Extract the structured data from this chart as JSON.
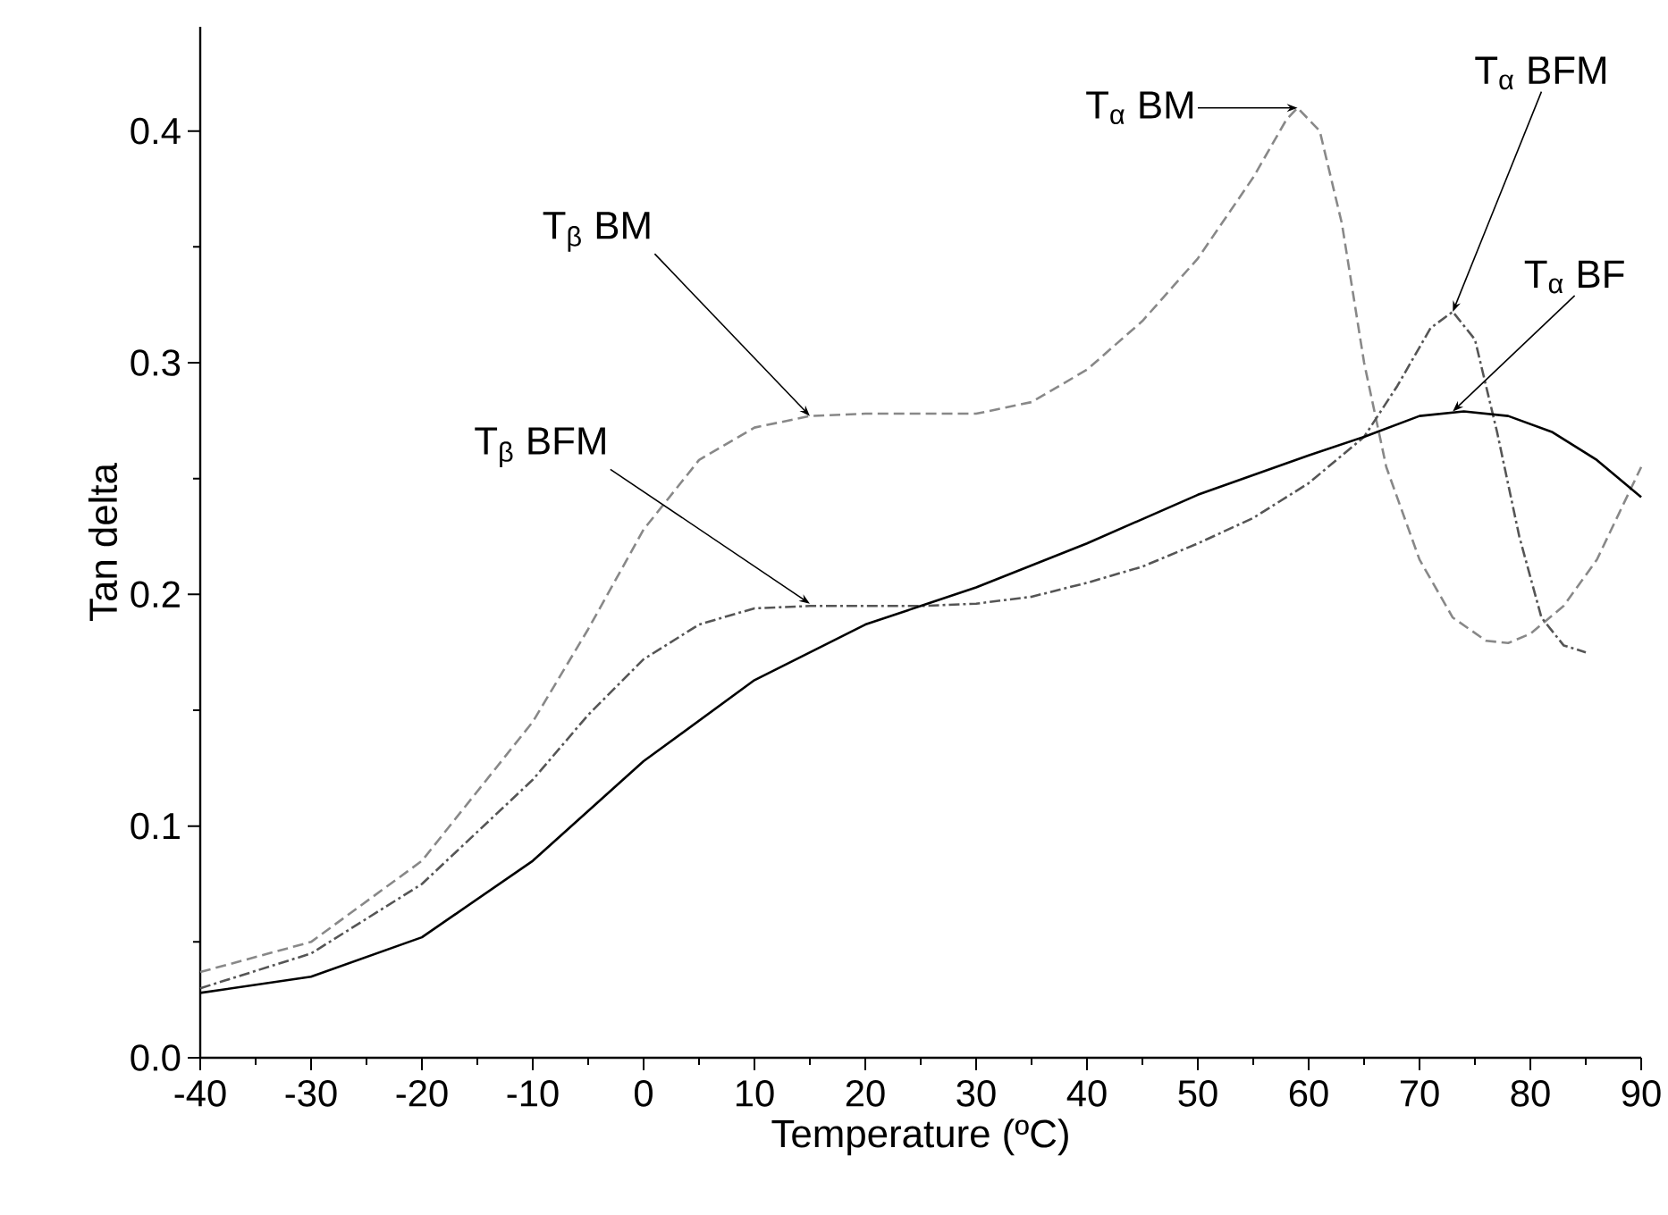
{
  "chart_data": {
    "type": "line",
    "xlabel": "Temperature (ºC)",
    "ylabel": "Tan delta",
    "xlim": [
      -40,
      90
    ],
    "ylim": [
      0,
      0.445
    ],
    "xticks": [
      -40,
      -30,
      -20,
      -10,
      0,
      10,
      20,
      30,
      40,
      50,
      60,
      70,
      80,
      90
    ],
    "yticks": [
      {
        "value": 0,
        "label": "0.0"
      },
      0.1,
      0.2,
      0.3,
      0.4
    ],
    "marker": "none",
    "series": [
      {
        "color": "#888888",
        "line_style": "dashed",
        "x": [
          -40,
          -30,
          -20,
          -10,
          -5,
          0,
          5,
          10,
          15,
          20,
          30,
          35,
          40,
          45,
          50,
          55,
          58,
          59,
          61,
          63,
          65,
          67,
          70,
          73,
          76,
          78,
          80,
          83,
          86,
          88,
          90
        ],
        "values": [
          0.037,
          0.05,
          0.085,
          0.145,
          0.185,
          0.228,
          0.258,
          0.272,
          0.277,
          0.278,
          0.278,
          0.283,
          0.297,
          0.318,
          0.345,
          0.38,
          0.405,
          0.41,
          0.4,
          0.36,
          0.3,
          0.255,
          0.215,
          0.19,
          0.18,
          0.179,
          0.183,
          0.195,
          0.215,
          0.235,
          0.255
        ]
      },
      {
        "color": "#555555",
        "line_style": "dashdot",
        "x": [
          -40,
          -30,
          -20,
          -10,
          -5,
          0,
          5,
          10,
          15,
          25,
          30,
          35,
          40,
          45,
          50,
          55,
          60,
          65,
          68,
          71,
          73,
          75,
          77,
          79,
          81,
          83,
          85
        ],
        "values": [
          0.03,
          0.045,
          0.075,
          0.12,
          0.148,
          0.172,
          0.187,
          0.194,
          0.195,
          0.195,
          0.196,
          0.199,
          0.205,
          0.212,
          0.222,
          0.233,
          0.248,
          0.268,
          0.29,
          0.315,
          0.322,
          0.31,
          0.27,
          0.225,
          0.19,
          0.178,
          0.175
        ]
      },
      {
        "color": "#000000",
        "line_style": "solid",
        "x": [
          -40,
          -30,
          -20,
          -10,
          0,
          10,
          20,
          25,
          30,
          40,
          50,
          60,
          65,
          70,
          74,
          78,
          82,
          86,
          90
        ],
        "values": [
          0.028,
          0.035,
          0.052,
          0.085,
          0.128,
          0.163,
          0.187,
          0.195,
          0.203,
          0.222,
          0.243,
          0.26,
          0.268,
          0.277,
          0.279,
          0.277,
          0.27,
          0.258,
          0.242
        ]
      }
    ],
    "annotations": [
      {
        "text": "T$_{α}$ BM",
        "x": 59,
        "y": 0.41
      },
      {
        "text": "T$_{β}$ BM",
        "x": 15,
        "y": 0.277
      },
      {
        "text": "T$_{β}$ BFM",
        "x": 15,
        "y": 0.196
      },
      {
        "text": "T$_{α}$ BFM",
        "x": 73,
        "y": 0.322
      },
      {
        "text": "T$_{α}$ BF",
        "x": 73,
        "y": 0.279
      }
    ]
  }
}
